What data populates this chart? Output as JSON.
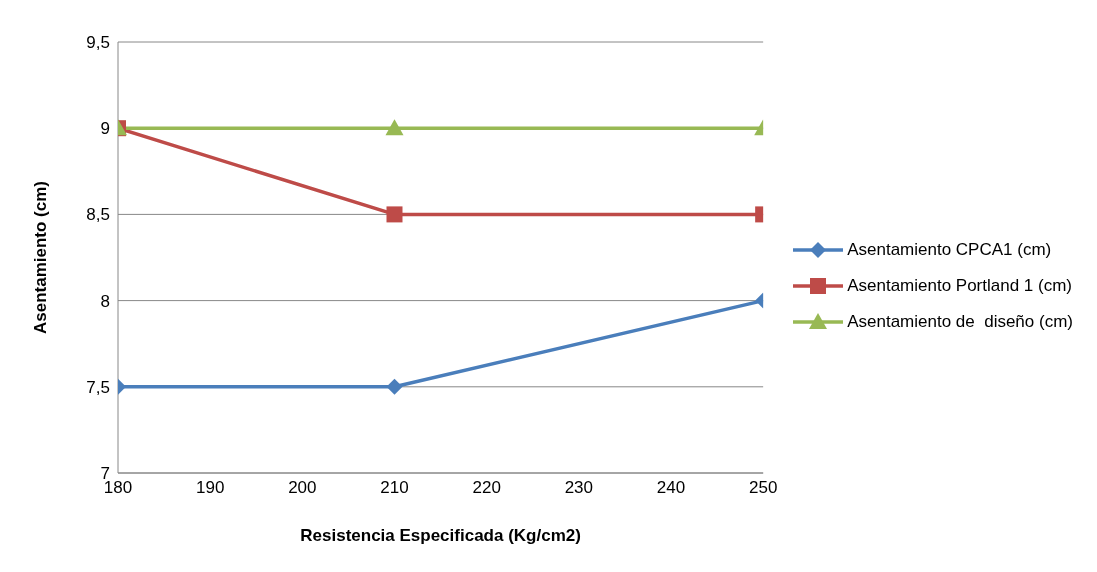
{
  "chart_data": {
    "type": "line",
    "xlabel": "Resistencia Especificada  (Kg/cm2)",
    "ylabel": "Asentamiento (cm)",
    "x": [
      180,
      210,
      250
    ],
    "series": [
      {
        "name": "Asentamiento CPCA1 (cm)",
        "color": "#4a7ebb",
        "marker": "diamond",
        "values": [
          7.5,
          7.5,
          8
        ]
      },
      {
        "name": "Asentamiento Portland 1 (cm)",
        "color": "#be4b48",
        "marker": "square",
        "values": [
          9,
          8.5,
          8.5
        ]
      },
      {
        "name": "Asentamiento de  diseño (cm)",
        "color": "#98b954",
        "marker": "triangle",
        "values": [
          9,
          9,
          9
        ]
      }
    ],
    "xlim": [
      180,
      250
    ],
    "xticks": [
      180,
      190,
      200,
      210,
      220,
      230,
      240,
      250
    ],
    "ylim": [
      7,
      9.5
    ],
    "yticks": [
      7,
      {
        "value": 7.5,
        "label": "7,5"
      },
      8,
      {
        "value": 8.5,
        "label": "8,5"
      },
      9,
      {
        "value": 9.5,
        "label": "9,5"
      }
    ],
    "grid": "y",
    "legend": "right",
    "line_style": "solid"
  }
}
